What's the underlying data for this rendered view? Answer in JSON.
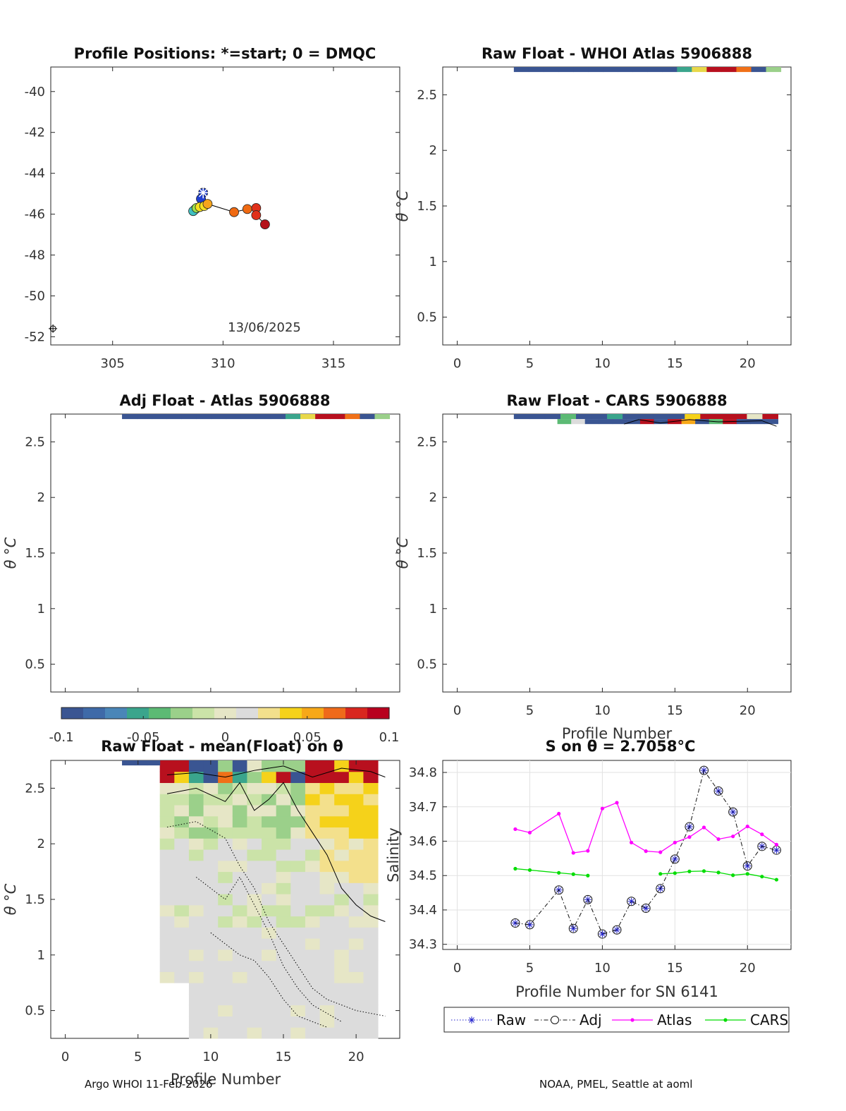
{
  "float_id": "5906888",
  "footer": {
    "left": "Argo WHOI 11-Feb-2026",
    "right": "NOAA, PMEL, Seattle at aoml"
  },
  "colors": {
    "raw": "#2222cc",
    "adj": "#111111",
    "atlas": "#ff00ff",
    "cars": "#00dd00",
    "track": "#000000"
  },
  "colormap": [
    "#3a5592",
    "#3f6aa8",
    "#4a86b8",
    "#3aa58c",
    "#5cba74",
    "#9bd08a",
    "#cbe3a8",
    "#e6e6c6",
    "#dcdcdc",
    "#f3e08c",
    "#f5d21a",
    "#f7a818",
    "#ef6a1a",
    "#d8261e",
    "#b8001e"
  ],
  "chart_data": [
    {
      "type": "scatter",
      "title": "Profile Positions: *=start; 0 = DMQC",
      "xlim": [
        302.2,
        318.0
      ],
      "ylim": [
        -52.4,
        -38.8
      ],
      "xticks": [
        305,
        310,
        315
      ],
      "yticks": [
        -40,
        -42,
        -44,
        -46,
        -48,
        -50,
        -52
      ],
      "date_label": "13/06/2025",
      "track": [
        {
          "lon": 309.1,
          "lat": -44.95,
          "c": 0.02
        },
        {
          "lon": 309.0,
          "lat": -45.25,
          "c": 0.06
        },
        {
          "lon": 308.75,
          "lat": -45.75,
          "c": 0.25
        },
        {
          "lon": 308.65,
          "lat": -45.85,
          "c": 0.3
        },
        {
          "lon": 308.8,
          "lat": -45.7,
          "c": 0.38
        },
        {
          "lon": 308.95,
          "lat": -45.65,
          "c": 0.45
        },
        {
          "lon": 309.15,
          "lat": -45.6,
          "c": 0.55
        },
        {
          "lon": 309.3,
          "lat": -45.5,
          "c": 0.65
        },
        {
          "lon": 310.5,
          "lat": -45.9,
          "c": 0.7
        },
        {
          "lon": 311.1,
          "lat": -45.75,
          "c": 0.8
        },
        {
          "lon": 311.5,
          "lat": -45.7,
          "c": 0.85
        },
        {
          "lon": 311.5,
          "lat": -46.05,
          "c": 0.9
        },
        {
          "lon": 311.9,
          "lat": -46.5,
          "c": 1.0
        }
      ],
      "start": {
        "lon": 309.1,
        "lat": -44.95
      },
      "other_marker": {
        "lon": 302.3,
        "lat": -51.6
      }
    },
    {
      "type": "heatmap",
      "title": "Raw Float - WHOI Atlas  5906888",
      "xlim": [
        -1,
        23
      ],
      "ylim": [
        0.25,
        2.75
      ],
      "xticks": [
        0,
        5,
        10,
        15,
        20
      ],
      "yticks": [
        0.5,
        1,
        1.5,
        2,
        2.5
      ],
      "ylabel": "θ °C"
    },
    {
      "type": "heatmap",
      "title": "Adj Float - Atlas  5906888",
      "xlim": [
        -1,
        23
      ],
      "ylim": [
        0.25,
        2.75
      ],
      "xticks": [
        0,
        5,
        10,
        15,
        20
      ],
      "yticks": [
        0.5,
        1,
        1.5,
        2,
        2.5
      ],
      "ylabel": "θ °C"
    },
    {
      "type": "heatmap",
      "title": "Raw Float - CARS  5906888",
      "xlim": [
        -1,
        23
      ],
      "ylim": [
        0.25,
        2.75
      ],
      "xticks": [
        0,
        5,
        10,
        15,
        20
      ],
      "yticks": [
        0.5,
        1,
        1.5,
        2,
        2.5
      ],
      "xlabel": "Profile Number",
      "ylabel": "θ °C"
    },
    {
      "type": "heatmap",
      "title": "Raw Float - mean(Float) on θ",
      "xlim": [
        -1,
        23
      ],
      "ylim": [
        0.25,
        2.75
      ],
      "xticks": [
        0,
        5,
        10,
        15,
        20
      ],
      "yticks": [
        0.5,
        1,
        1.5,
        2,
        2.5
      ],
      "xlabel": "Profile Number",
      "ylabel": "θ °C",
      "colorbar": {
        "min": -0.1,
        "max": 0.1,
        "ticks": [
          "-0.1",
          "-0.05",
          "0",
          "0.05",
          "0.1"
        ]
      }
    },
    {
      "type": "line",
      "title": "S on θ = 2.7058°C",
      "xlabel": "Profile Number for SN 6141",
      "ylabel": "Salinity",
      "xlim": [
        -1,
        23
      ],
      "ylim": [
        34.285,
        34.835
      ],
      "xticks": [
        0,
        5,
        10,
        15,
        20
      ],
      "yticks": [
        34.3,
        34.4,
        34.5,
        34.6,
        34.7,
        34.8
      ],
      "grid": true,
      "legend": [
        "Raw",
        "Adj",
        "Atlas",
        "CARS"
      ],
      "series": [
        {
          "name": "Raw",
          "x": [
            4,
            5,
            7,
            8,
            9,
            10,
            11,
            12,
            13,
            14,
            15,
            16,
            17,
            18,
            19,
            20,
            21,
            22
          ],
          "values": [
            34.362,
            34.357,
            34.458,
            34.346,
            34.43,
            34.33,
            34.342,
            34.425,
            34.405,
            34.462,
            34.548,
            34.642,
            34.806,
            34.746,
            34.685,
            34.528,
            34.585,
            34.574
          ]
        },
        {
          "name": "Adj",
          "x": [
            4,
            5,
            7,
            8,
            9,
            10,
            11,
            12,
            13,
            14,
            15,
            16,
            17,
            18,
            19,
            20,
            21,
            22
          ],
          "values": [
            34.362,
            34.357,
            34.458,
            34.346,
            34.43,
            34.33,
            34.342,
            34.425,
            34.405,
            34.462,
            34.548,
            34.642,
            34.806,
            34.746,
            34.685,
            34.528,
            34.585,
            34.574
          ]
        },
        {
          "name": "Atlas",
          "x": [
            4,
            5,
            7,
            8,
            9,
            10,
            11,
            12,
            13,
            14,
            15,
            16,
            17,
            18,
            19,
            20,
            21,
            22
          ],
          "values": [
            34.635,
            34.625,
            34.68,
            34.566,
            34.572,
            34.695,
            34.712,
            34.596,
            34.571,
            34.568,
            34.596,
            34.612,
            34.64,
            34.606,
            34.614,
            34.643,
            34.62,
            34.59
          ]
        },
        {
          "name": "CARS",
          "x": [
            4,
            5,
            7,
            8,
            9,
            14,
            15,
            16,
            17,
            18,
            19,
            20,
            21,
            22
          ],
          "values": [
            34.52,
            34.516,
            34.508,
            34.504,
            34.5,
            34.505,
            34.507,
            34.512,
            34.513,
            34.509,
            34.501,
            34.505,
            34.497,
            34.488
          ]
        }
      ]
    }
  ]
}
